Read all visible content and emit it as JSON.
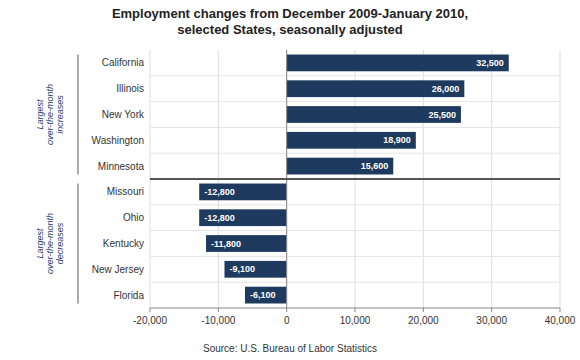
{
  "chart_data": {
    "type": "bar",
    "orientation": "horizontal",
    "title": "Employment changes from December 2009-January 2010,\nselected States, seasonally adjusted",
    "categories": [
      "California",
      "Illinois",
      "New York",
      "Washington",
      "Minnesota",
      "Missouri",
      "Ohio",
      "Kentucky",
      "New Jersey",
      "Florida"
    ],
    "values": [
      32500,
      26000,
      25500,
      18900,
      15600,
      -12800,
      -12800,
      -11800,
      -9100,
      -6100
    ],
    "value_labels": [
      "32,500",
      "26,000",
      "25,500",
      "18,900",
      "15,600",
      "-12,800",
      "-12,800",
      "-11,800",
      "-9,100",
      "-6,100"
    ],
    "data_labels": true,
    "color": "#1F3A5F",
    "xlim": [
      -20000,
      40000
    ],
    "xticks": [
      {
        "value": -20000,
        "label": "-20,000"
      },
      {
        "value": -10000,
        "label": "-10,000"
      },
      0,
      {
        "value": 10000,
        "label": "10,000"
      },
      {
        "value": 20000,
        "label": "20,000"
      },
      {
        "value": 30000,
        "label": "30,000"
      },
      {
        "value": 40000,
        "label": "40,000"
      }
    ],
    "grid": true,
    "annotations": [
      "Largest\nover-the-month\nincreases",
      "Largest\nover-the-month\ndecreases",
      "Source: U.S. Bureau of Labor Statistics"
    ]
  }
}
